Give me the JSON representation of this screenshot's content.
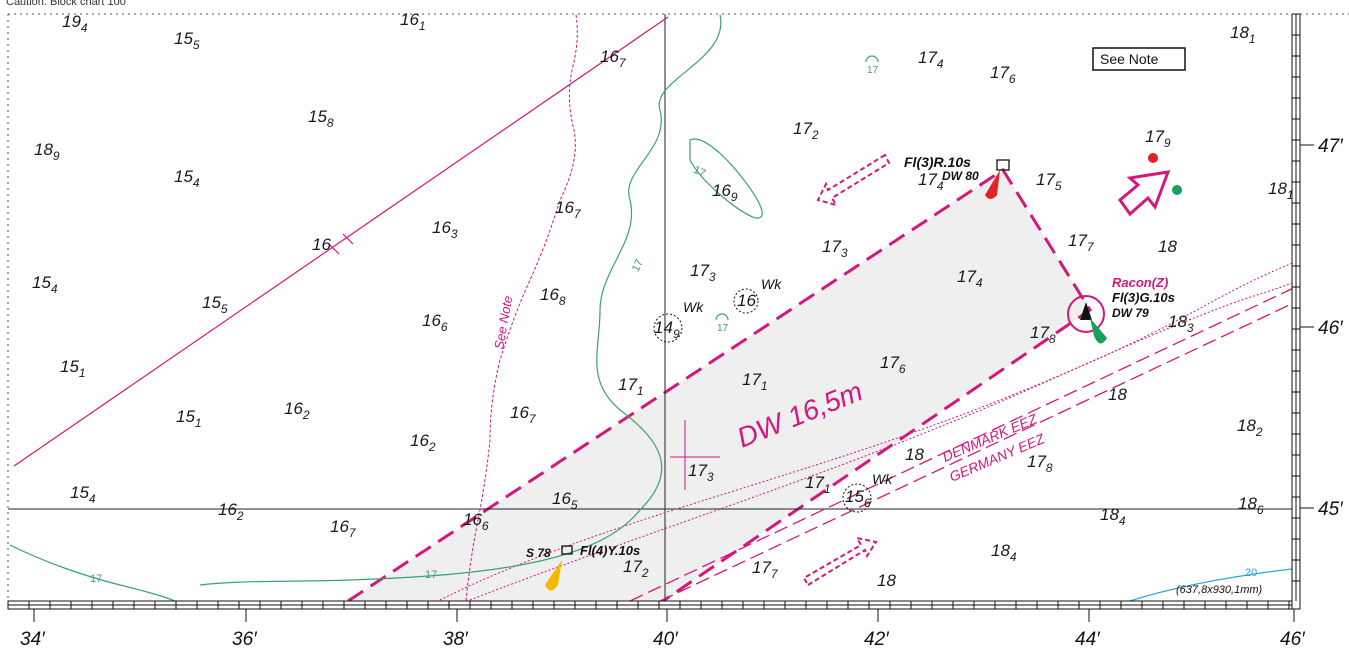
{
  "header_text": "Caution: Block chart 100",
  "note_label": "See Note",
  "vertical_note": "See Note",
  "scale_note": "(637,8x930,1mm)",
  "deep_water_label": "DW 16,5m",
  "boundary_labels": [
    "DENMARK EEZ",
    "GERMANY EEZ"
  ],
  "bottom_ticks": [
    "34′",
    "36′",
    "38′",
    "40′",
    "42′",
    "44′",
    "46′"
  ],
  "right_ticks": [
    "47′",
    "46′",
    "45′"
  ],
  "soundings": [
    {
      "m": "19",
      "s": "4"
    },
    {
      "m": "15",
      "s": "5"
    },
    {
      "m": "16",
      "s": "1"
    },
    {
      "m": "16",
      "s": "7"
    },
    {
      "m": "15",
      "s": "8"
    },
    {
      "m": "18",
      "s": "9"
    },
    {
      "m": "15",
      "s": "4"
    },
    {
      "m": "16",
      "s": "7"
    },
    {
      "m": "16",
      "s": "3"
    },
    {
      "m": "16",
      "s": ""
    },
    {
      "m": "15",
      "s": "4"
    },
    {
      "m": "15",
      "s": "5"
    },
    {
      "m": "16",
      "s": "8"
    },
    {
      "m": "16",
      "s": "6"
    },
    {
      "m": "15",
      "s": "1"
    },
    {
      "m": "15",
      "s": "1"
    },
    {
      "m": "16",
      "s": "2"
    },
    {
      "m": "16",
      "s": "7"
    },
    {
      "m": "16",
      "s": "2"
    },
    {
      "m": "15",
      "s": "4"
    },
    {
      "m": "16",
      "s": "2"
    },
    {
      "m": "16",
      "s": "7"
    },
    {
      "m": "16",
      "s": "6"
    },
    {
      "m": "16",
      "s": "5"
    },
    {
      "m": "17",
      "s": "4"
    },
    {
      "m": "17",
      "s": "6"
    },
    {
      "m": "17",
      "s": "2"
    },
    {
      "m": "16",
      "s": "9"
    },
    {
      "m": "17",
      "s": "3"
    },
    {
      "m": "17",
      "s": "3"
    },
    {
      "m": "17",
      "s": "1"
    },
    {
      "m": "17",
      "s": "1"
    },
    {
      "m": "17",
      "s": "3"
    },
    {
      "m": "17",
      "s": "2"
    },
    {
      "m": "17",
      "s": "7"
    },
    {
      "m": "17",
      "s": "1"
    },
    {
      "m": "17",
      "s": "4"
    },
    {
      "m": "17",
      "s": "5"
    },
    {
      "m": "17",
      "s": "7"
    },
    {
      "m": "17",
      "s": "4"
    },
    {
      "m": "17",
      "s": "6"
    },
    {
      "m": "17",
      "s": "8"
    },
    {
      "m": "17",
      "s": "9"
    },
    {
      "m": "18",
      "s": "1"
    },
    {
      "m": "18",
      "s": "1"
    },
    {
      "m": "18",
      "s": ""
    },
    {
      "m": "18",
      "s": "3"
    },
    {
      "m": "18",
      "s": ""
    },
    {
      "m": "18",
      "s": "2"
    },
    {
      "m": "18",
      "s": ""
    },
    {
      "m": "17",
      "s": "8"
    },
    {
      "m": "18",
      "s": "4"
    },
    {
      "m": "18",
      "s": "6"
    },
    {
      "m": "18",
      "s": "4"
    },
    {
      "m": "18",
      "s": ""
    },
    {
      "m": "17",
      "s": ""
    },
    {
      "m": "17",
      "s": ""
    },
    {
      "m": "20",
      "s": ""
    }
  ],
  "wrecks": [
    {
      "label": "Wk",
      "depth": "14",
      "sub": "9"
    },
    {
      "label": "Wk",
      "depth": "16",
      "sub": ""
    },
    {
      "label": "Wk",
      "depth": "15",
      "sub": "6"
    }
  ],
  "buoys": [
    {
      "light": "Fl(3)R.10s",
      "name": "DW 80",
      "color": "#e0222a"
    },
    {
      "light": "Fl(3)G.10s",
      "name": "DW 79",
      "racon": "Racon(Z)",
      "color": "#16a05a"
    },
    {
      "light": "Fl(4)Y.10s",
      "name": "S 78",
      "color": "#f5b800"
    }
  ],
  "colors": {
    "magenta": "#d4177c",
    "depth_contour": "#3aa36b",
    "blue_contour": "#2ba6d9",
    "deep_water_fill": "#efefef"
  }
}
